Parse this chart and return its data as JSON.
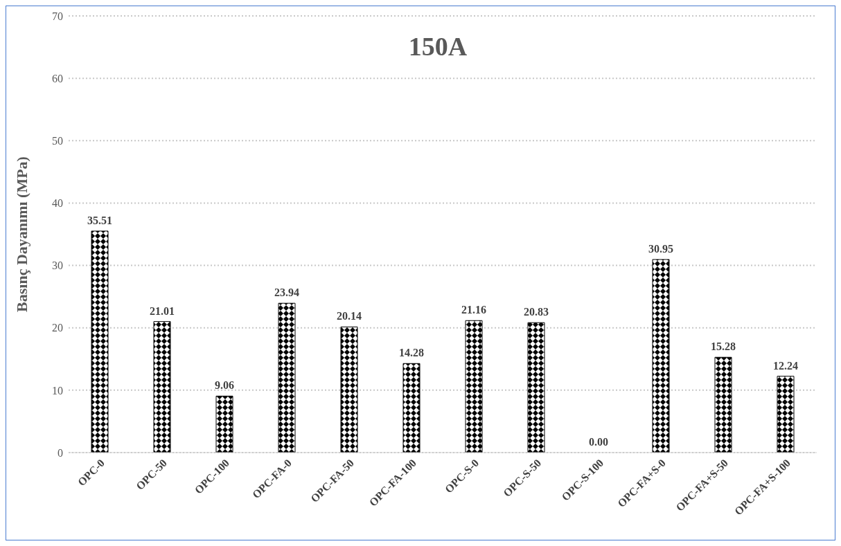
{
  "chart_data": {
    "type": "bar",
    "title": "150A",
    "ylabel": "Basınç Dayanımı (MPa)",
    "categories": [
      "OPC-0",
      "OPC-50",
      "OPC-100",
      "OPC-FA-0",
      "OPC-FA-50",
      "OPC-FA-100",
      "OPC-S-0",
      "OPC-S-50",
      "OPC-S-100",
      "OPC-FA+S-0",
      "OPC-FA+S-50",
      "OPC-FA+S-100"
    ],
    "values": [
      35.51,
      21.01,
      9.06,
      23.94,
      20.14,
      14.28,
      21.16,
      20.83,
      0,
      30.95,
      15.28,
      12.24
    ],
    "value_labels": [
      "35.51",
      "21.01",
      "9.06",
      "23.94",
      "20.14",
      "14.28",
      "21.16",
      "20.83",
      "0.00",
      "30.95",
      "15.28",
      "12.24"
    ],
    "color": "#000000",
    "ylim": [
      0,
      70
    ],
    "yticks": [
      0,
      10,
      20,
      30,
      40,
      50,
      60,
      70
    ],
    "grid": "y"
  }
}
